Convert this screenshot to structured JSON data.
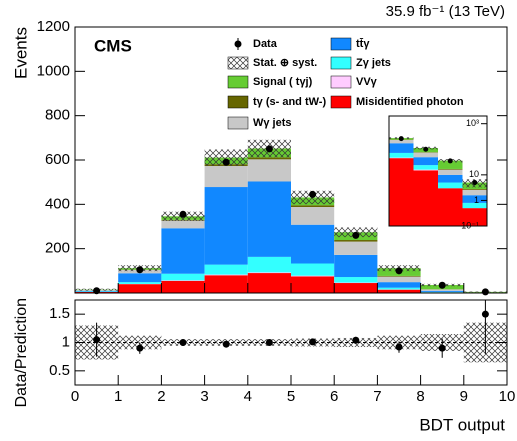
{
  "chart_data": {
    "type": "stacked_histogram",
    "experiment": "CMS",
    "lumi": "35.9 fb⁻¹ (13 TeV)",
    "ylabel": "Events",
    "xlabel": "BDT output",
    "bins": [
      0,
      1,
      2,
      3,
      4,
      5,
      6,
      7,
      8,
      9,
      10
    ],
    "xlim": [
      0,
      10
    ],
    "xticks": [
      0,
      1,
      2,
      3,
      4,
      5,
      6,
      7,
      8,
      9,
      10
    ],
    "ylim": [
      0,
      1200
    ],
    "yticks": [
      200,
      400,
      600,
      800,
      1000,
      1200
    ],
    "series": [
      {
        "name": "Misidentified photon",
        "color": "#ff0000",
        "values": [
          5,
          40,
          55,
          80,
          90,
          75,
          45,
          15,
          3,
          0.5
        ]
      },
      {
        "name": "VVγ",
        "color": "#ffccff",
        "values": [
          0,
          1,
          2,
          3,
          3,
          3,
          2,
          1,
          0,
          0
        ]
      },
      {
        "name": "Zγ jets",
        "color": "#33ffff",
        "values": [
          2,
          8,
          30,
          45,
          70,
          55,
          25,
          8,
          2,
          0.3
        ]
      },
      {
        "name": "tt̄γ",
        "color": "#1188ff",
        "values": [
          3,
          40,
          205,
          350,
          340,
          175,
          100,
          25,
          5,
          0.8
        ]
      },
      {
        "name": "Wγ jets",
        "color": "#c8c8c8",
        "values": [
          3,
          15,
          35,
          95,
          100,
          80,
          60,
          25,
          6,
          1
        ]
      },
      {
        "name": "tγ (s- and tW-)",
        "color": "#666600",
        "values": [
          0,
          1,
          3,
          8,
          9,
          8,
          7,
          3,
          1,
          0.2
        ]
      },
      {
        "name": "Signal ( tγj)",
        "color": "#66cc33",
        "values": [
          2,
          7,
          16,
          30,
          40,
          35,
          35,
          35,
          19,
          2.2
        ]
      }
    ],
    "data": {
      "name": "Data",
      "values": [
        10,
        105,
        355,
        590,
        650,
        445,
        260,
        100,
        35,
        5
      ]
    },
    "band": {
      "name": "Stat. ⊕ syst.",
      "values": [
        0.3,
        0.12,
        0.06,
        0.06,
        0.06,
        0.07,
        0.08,
        0.12,
        0.15,
        0.35
      ]
    },
    "inset": {
      "xlim": [
        6,
        10
      ],
      "ylim": [
        0.1,
        2000
      ],
      "log": true,
      "yticks": [
        {
          "value": 1000,
          "label": "10³"
        },
        {
          "value": 10,
          "label": "10"
        },
        {
          "value": 1,
          "label": "1"
        },
        {
          "value": 0.1,
          "label": "10⁻¹"
        }
      ]
    },
    "ratio": {
      "ylabel": "Data/Prediction",
      "ylim": [
        0.25,
        1.75
      ],
      "yticks": [
        0.5,
        1,
        1.5
      ],
      "values": [
        1.05,
        0.9,
        1.0,
        0.97,
        1.0,
        1.01,
        1.04,
        0.92,
        0.9,
        1.5
      ],
      "errors": [
        0.3,
        0.1,
        0.05,
        0.04,
        0.04,
        0.05,
        0.06,
        0.1,
        0.17,
        0.7
      ]
    }
  }
}
